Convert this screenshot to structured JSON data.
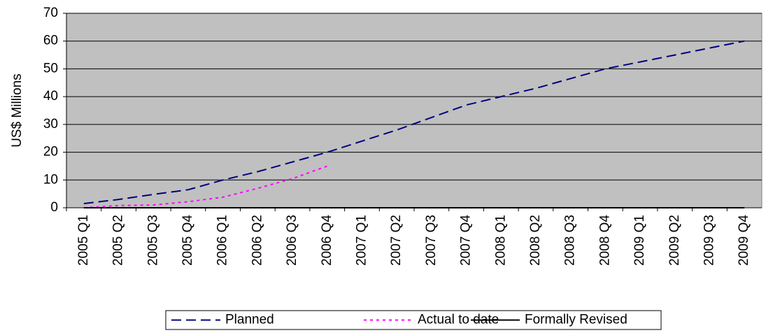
{
  "chart_data": {
    "type": "line",
    "y_label": "US$ Millions",
    "categories": [
      "2005 Q1",
      "2005 Q2",
      "2005 Q3",
      "2005 Q4",
      "2006 Q1",
      "2006 Q2",
      "2006 Q3",
      "2006 Q4",
      "2007 Q1",
      "2007 Q2",
      "2007 Q3",
      "2007 Q4",
      "2008 Q1",
      "2008 Q2",
      "2008 Q3",
      "2008 Q4",
      "2009 Q1",
      "2009 Q2",
      "2009 Q3",
      "2009 Q4"
    ],
    "series": [
      {
        "name": "Planned",
        "color": "#000080",
        "dash": "dashed",
        "values": [
          1.5,
          3,
          4.8,
          6.5,
          10,
          13,
          16.5,
          20,
          24,
          28,
          32.5,
          37,
          40,
          43,
          46.5,
          50,
          52.5,
          55,
          57.5,
          60
        ]
      },
      {
        "name": "Actual to date",
        "color": "#ff00ff",
        "dash": "dotted",
        "values": [
          0,
          0.8,
          1,
          2.2,
          3.8,
          7,
          10.5,
          15,
          null,
          null,
          null,
          null,
          null,
          null,
          null,
          null,
          null,
          null,
          null,
          null
        ]
      },
      {
        "name": "Formally Revised",
        "color": "#000000",
        "dash": "solid",
        "values": [
          0,
          0,
          0,
          0,
          0,
          0,
          0,
          0,
          0,
          0,
          0,
          0,
          0,
          0,
          0,
          0,
          0,
          0,
          0,
          0
        ]
      }
    ],
    "ylim": [
      0,
      70
    ],
    "yticks": [
      0,
      10,
      20,
      30,
      40,
      50,
      60,
      70
    ],
    "grid": true,
    "legend": "bottom"
  }
}
